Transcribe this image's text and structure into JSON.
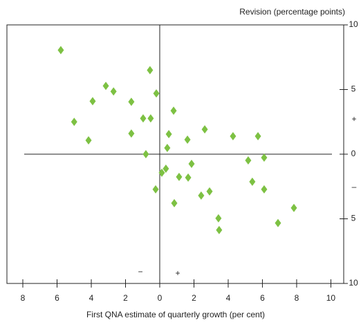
{
  "chart_data": {
    "type": "scatter",
    "y_label": "Revision (percentage points)",
    "x_label": "First QNA estimate of quarterly growth (per cent)",
    "signs": {
      "x_negative": "−",
      "x_positive": "+",
      "y_positive": "+",
      "y_negative": "–"
    },
    "color": "#7dc143",
    "xlim": [
      -8.93,
      10.75
    ],
    "ylim": [
      -10,
      10
    ],
    "xticks": [
      {
        "value": -8,
        "label": "8"
      },
      {
        "value": -6,
        "label": "6"
      },
      {
        "value": -4,
        "label": "4"
      },
      {
        "value": -2,
        "label": "2"
      },
      0,
      2,
      4,
      6,
      8,
      10
    ],
    "yticks": [
      {
        "value": -10,
        "label": "10"
      },
      {
        "value": -5,
        "label": "5"
      },
      0,
      5,
      10
    ],
    "x": [
      -5.78,
      -0.57,
      -3.15,
      -2.7,
      -3.92,
      -1.66,
      -0.2,
      -5.0,
      -0.97,
      -0.53,
      0.81,
      -1.66,
      0.53,
      2.63,
      1.62,
      -4.16,
      0.44,
      4.28,
      5.74,
      -0.81,
      5.17,
      6.1,
      0.36,
      0.12,
      1.86,
      1.13,
      1.66,
      -0.24,
      5.41,
      6.1,
      2.91,
      2.42,
      0.85,
      7.84,
      3.43,
      6.91,
      3.47
    ],
    "values": [
      8.05,
      6.5,
      5.28,
      4.85,
      4.1,
      4.05,
      4.7,
      2.5,
      2.77,
      2.77,
      3.36,
      1.6,
      1.55,
      1.92,
      1.12,
      1.07,
      0.48,
      1.39,
      1.39,
      0,
      -0.48,
      -0.27,
      -1.12,
      -1.44,
      -0.75,
      -1.76,
      -1.81,
      -2.72,
      -2.13,
      -2.72,
      -2.88,
      -3.2,
      -3.79,
      -4.16,
      -4.96,
      -5.33,
      -5.87
    ]
  }
}
